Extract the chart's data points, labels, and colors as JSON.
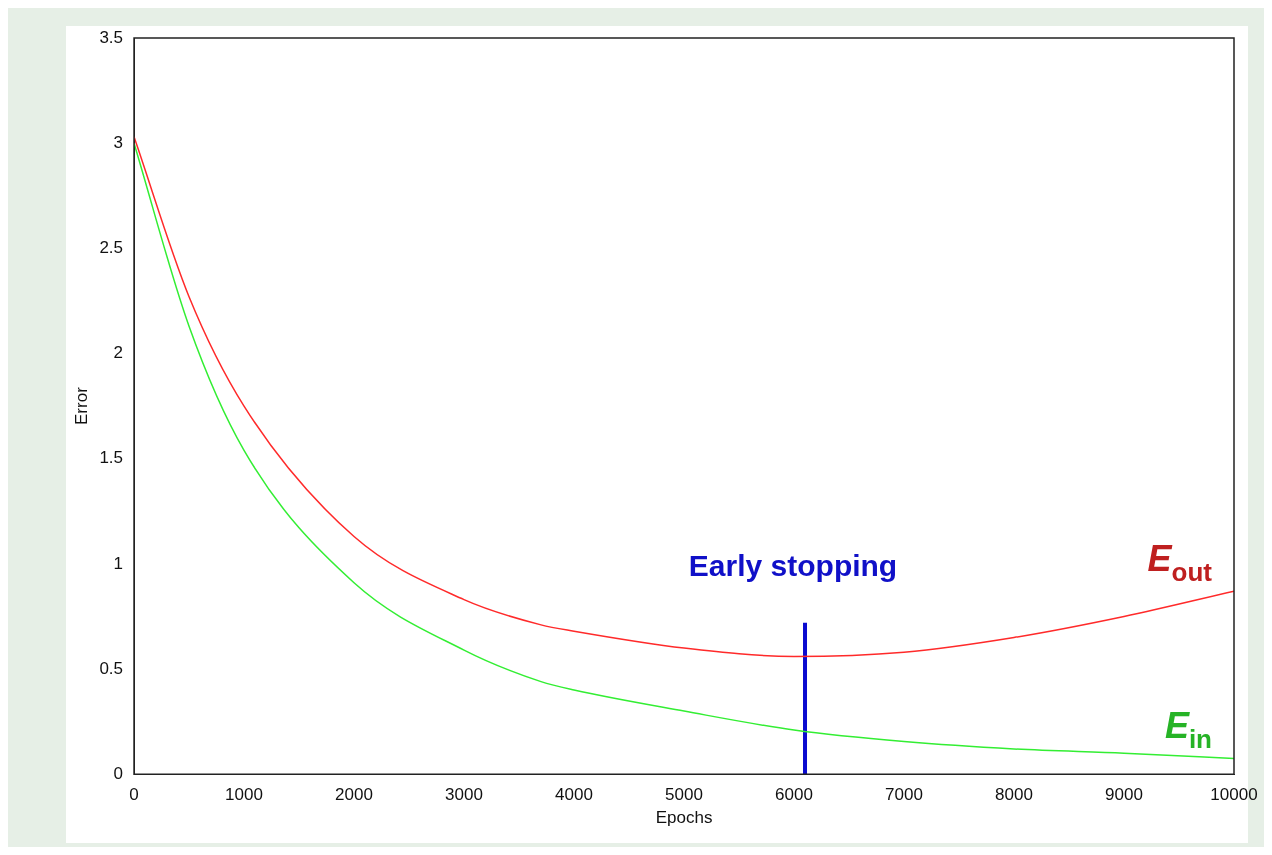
{
  "chart_data": {
    "type": "line",
    "xlabel": "Epochs",
    "ylabel": "Error",
    "xlim": [
      0,
      10000
    ],
    "xticks": [
      0,
      1000,
      2000,
      3000,
      4000,
      5000,
      6000,
      7000,
      8000,
      9000,
      10000
    ],
    "ylim": [
      0,
      3.5
    ],
    "yticks": [
      0,
      0.5,
      1,
      1.5,
      2,
      2.5,
      3,
      3.5
    ],
    "grid": false,
    "legend": false,
    "series": [
      {
        "name": "E$_{out}$",
        "color": "#ff2a2a",
        "x": [
          0,
          500,
          1000,
          2000,
          3000,
          3700,
          4000,
          5000,
          6000,
          7000,
          8000,
          9000,
          10000
        ],
        "values": [
          3.03,
          2.27,
          1.75,
          1.13,
          0.83,
          0.71,
          0.68,
          0.6,
          0.56,
          0.58,
          0.65,
          0.75,
          0.87
        ]
      },
      {
        "name": "E$_{in}$",
        "color": "#33ee33",
        "x": [
          0,
          500,
          1000,
          2000,
          3000,
          3700,
          4000,
          5000,
          6000,
          7000,
          8000,
          9000,
          10000
        ],
        "values": [
          3.0,
          2.13,
          1.54,
          0.91,
          0.59,
          0.44,
          0.4,
          0.3,
          0.21,
          0.155,
          0.12,
          0.1,
          0.075
        ]
      },
      {
        "color": "#0a0ad0",
        "x": [
          6100,
          6100
        ],
        "values": [
          0,
          0.72
        ]
      }
    ],
    "annotations": [
      "Early stopping"
    ]
  }
}
